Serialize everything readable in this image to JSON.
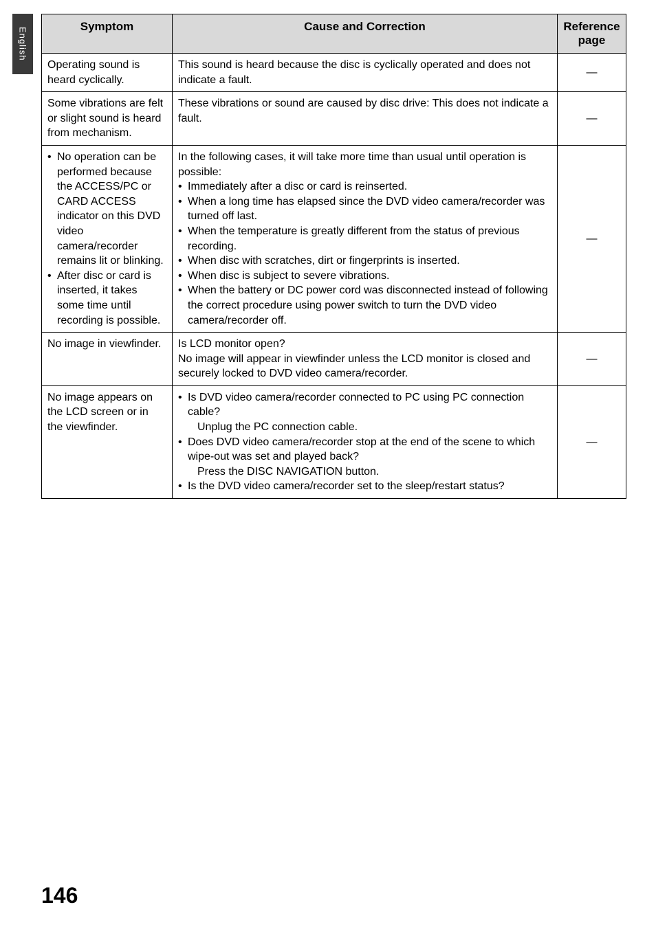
{
  "sideTab": "English",
  "pageNumber": "146",
  "table": {
    "headers": {
      "symptom": "Symptom",
      "cause": "Cause and Correction",
      "ref": "Reference page"
    },
    "rows": [
      {
        "symptom_plain": "Operating sound is heard cyclically.",
        "cause_plain": "This sound is heard because the disc is cyclically operated and does not indicate a fault.",
        "ref": "—"
      },
      {
        "symptom_plain": "Some vibrations are felt or slight sound is heard from mechanism.",
        "cause_plain": "These vibrations or sound are caused by disc drive: This does not indicate a fault.",
        "ref": "—"
      },
      {
        "symptom_bullets": [
          "No operation can be performed because the ACCESS/PC or CARD ACCESS indicator on this DVD video camera/recorder remains lit or blinking.",
          "After disc or card is inserted, it takes some time until recording is possible."
        ],
        "cause_intro": "In the following cases, it will take more time than usual until operation is possible:",
        "cause_bullets": [
          "Immediately after a disc or card is reinserted.",
          "When a long time has elapsed since the DVD video camera/recorder was turned off last.",
          "When the temperature is greatly different from the status of previous recording.",
          "When disc with scratches, dirt or fingerprints is inserted.",
          "When disc is subject to severe vibrations.",
          "When the battery or DC power cord was disconnected instead of following the correct procedure using power switch to turn the DVD video camera/recorder off."
        ],
        "ref": "—"
      },
      {
        "symptom_plain": "No image in viewfinder.",
        "cause_lead": "Is LCD monitor open?",
        "cause_tail": "No image will appear in viewfinder unless the LCD monitor is closed and securely locked to DVD video camera/recorder.",
        "ref": "—"
      },
      {
        "symptom_plain": "No image appears on the LCD screen or in the viewfinder.",
        "cause_mixed": [
          {
            "bullet": "Is DVD video camera/recorder connected to PC using PC connection cable?",
            "after": "Unplug the PC connection cable."
          },
          {
            "bullet": "Does DVD video camera/recorder stop at the end of the scene to which wipe-out was set and played back?",
            "after": "Press the DISC NAVIGATION button."
          },
          {
            "bullet": "Is the DVD video camera/recorder set to the sleep/restart status?"
          }
        ],
        "ref": "—"
      }
    ]
  }
}
